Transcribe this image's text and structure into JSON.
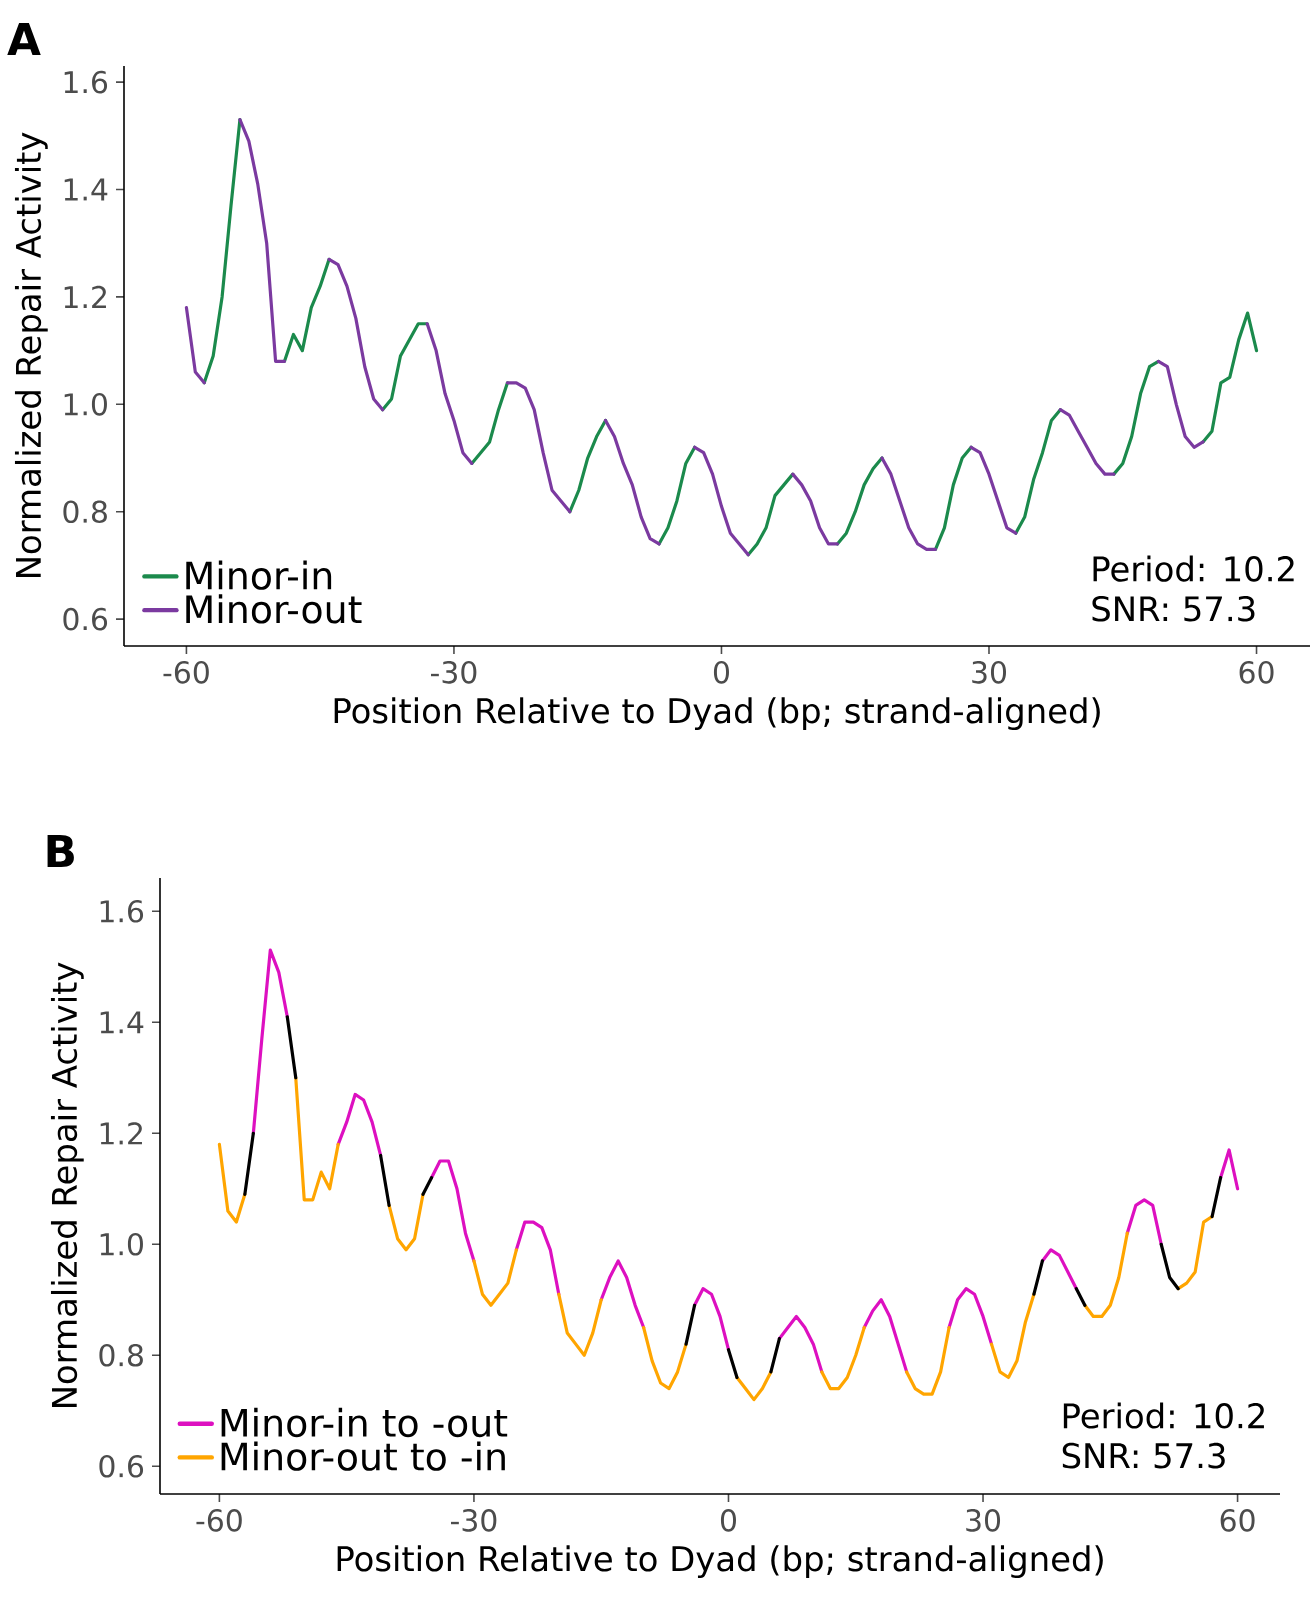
{
  "chart_data": [
    {
      "type": "line",
      "title": "A",
      "xlabel": "Position Relative to Dyad (bp; strand-aligned)",
      "ylabel": "Normalized Repair Activity",
      "annotations": [
        "Period: 10.2",
        "SNR: 57.3"
      ],
      "x": [
        -60,
        -59,
        -58,
        -57,
        -56,
        -55,
        -54,
        -53,
        -52,
        -51,
        -50,
        -49,
        -48,
        -47,
        -46,
        -45,
        -44,
        -43,
        -42,
        -41,
        -40,
        -39,
        -38,
        -37,
        -36,
        -35,
        -34,
        -33,
        -32,
        -31,
        -30,
        -29,
        -28,
        -27,
        -26,
        -25,
        -24,
        -23,
        -22,
        -21,
        -20,
        -19,
        -18,
        -17,
        -16,
        -15,
        -14,
        -13,
        -12,
        -11,
        -10,
        -9,
        -8,
        -7,
        -6,
        -5,
        -4,
        -3,
        -2,
        -1,
        0,
        1,
        2,
        3,
        4,
        5,
        6,
        7,
        8,
        9,
        10,
        11,
        12,
        13,
        14,
        15,
        16,
        17,
        18,
        19,
        20,
        21,
        22,
        23,
        24,
        25,
        26,
        27,
        28,
        29,
        30,
        31,
        32,
        33,
        34,
        35,
        36,
        37,
        38,
        39,
        40,
        41,
        42,
        43,
        44,
        45,
        46,
        47,
        48,
        49,
        50,
        51,
        52,
        53,
        54,
        55,
        56,
        57,
        58,
        59,
        60
      ],
      "xlim": [
        -67,
        66
      ],
      "ylim": [
        0.55,
        1.63
      ],
      "xticks": [
        -60,
        -30,
        0,
        30,
        60
      ],
      "yticks": [
        0.6,
        0.8,
        {
          "value": 1.0,
          "label": "1.0"
        },
        1.2,
        1.4,
        1.6
      ],
      "legend": "bottom left",
      "series": [
        {
          "name": "Minor-in",
          "color": "#1b8a4c",
          "values": [
            null,
            null,
            1.04,
            1.09,
            1.2,
            1.37,
            1.53,
            null,
            null,
            null,
            null,
            1.08,
            1.13,
            1.1,
            1.18,
            1.22,
            1.27,
            null,
            null,
            null,
            null,
            null,
            0.99,
            1.01,
            1.09,
            1.12,
            1.15,
            1.15,
            null,
            null,
            null,
            null,
            0.89,
            0.91,
            0.93,
            0.99,
            1.04,
            null,
            null,
            null,
            null,
            null,
            null,
            0.8,
            0.84,
            0.9,
            0.94,
            0.97,
            null,
            null,
            null,
            null,
            null,
            0.74,
            0.77,
            0.82,
            0.89,
            0.92,
            null,
            null,
            null,
            null,
            null,
            0.72,
            0.74,
            0.77,
            0.83,
            0.85,
            0.87,
            null,
            null,
            null,
            null,
            0.74,
            0.76,
            0.8,
            0.85,
            0.88,
            0.9,
            null,
            null,
            null,
            null,
            null,
            0.73,
            0.77,
            0.85,
            0.9,
            0.92,
            null,
            null,
            null,
            null,
            0.76,
            0.79,
            0.86,
            0.91,
            0.97,
            0.99,
            null,
            null,
            null,
            null,
            null,
            0.87,
            0.89,
            0.94,
            1.02,
            1.07,
            1.08,
            null,
            null,
            null,
            null,
            0.93,
            0.95,
            1.04,
            1.05,
            1.12,
            1.17,
            1.1
          ]
        },
        {
          "name": "Minor-out",
          "color": "#7b3aa0",
          "values": [
            1.18,
            1.06,
            1.04,
            null,
            null,
            null,
            1.53,
            1.49,
            1.41,
            1.3,
            1.08,
            1.08,
            null,
            null,
            null,
            null,
            1.27,
            1.26,
            1.22,
            1.16,
            1.07,
            1.01,
            0.99,
            null,
            null,
            null,
            null,
            1.15,
            1.1,
            1.02,
            0.97,
            0.91,
            0.89,
            null,
            null,
            null,
            1.04,
            1.04,
            1.03,
            0.99,
            0.91,
            0.84,
            0.82,
            0.8,
            null,
            null,
            null,
            0.97,
            0.94,
            0.89,
            0.85,
            0.79,
            0.75,
            0.74,
            null,
            null,
            null,
            0.92,
            0.91,
            0.87,
            0.81,
            0.76,
            0.74,
            0.72,
            null,
            null,
            null,
            null,
            0.87,
            0.85,
            0.82,
            0.77,
            0.74,
            0.74,
            null,
            null,
            null,
            null,
            0.9,
            0.87,
            0.82,
            0.77,
            0.74,
            0.73,
            0.73,
            null,
            null,
            null,
            0.92,
            0.91,
            0.87,
            0.82,
            0.77,
            0.76,
            null,
            null,
            null,
            null,
            0.99,
            0.98,
            0.95,
            0.92,
            0.89,
            0.87,
            0.87,
            null,
            null,
            null,
            null,
            1.08,
            1.07,
            1.0,
            0.94,
            0.92,
            0.93,
            null,
            null,
            null,
            null,
            null,
            null
          ]
        }
      ]
    },
    {
      "type": "line",
      "title": "B",
      "xlabel": "Position Relative to Dyad (bp; strand-aligned)",
      "ylabel": "Normalized Repair Activity",
      "annotations": [
        "Period: 10.2",
        "SNR: 57.3"
      ],
      "x": [
        -60,
        -59,
        -58,
        -57,
        -56,
        -55,
        -54,
        -53,
        -52,
        -51,
        -50,
        -49,
        -48,
        -47,
        -46,
        -45,
        -44,
        -43,
        -42,
        -41,
        -40,
        -39,
        -38,
        -37,
        -36,
        -35,
        -34,
        -33,
        -32,
        -31,
        -30,
        -29,
        -28,
        -27,
        -26,
        -25,
        -24,
        -23,
        -22,
        -21,
        -20,
        -19,
        -18,
        -17,
        -16,
        -15,
        -14,
        -13,
        -12,
        -11,
        -10,
        -9,
        -8,
        -7,
        -6,
        -5,
        -4,
        -3,
        -2,
        -1,
        0,
        1,
        2,
        3,
        4,
        5,
        6,
        7,
        8,
        9,
        10,
        11,
        12,
        13,
        14,
        15,
        16,
        17,
        18,
        19,
        20,
        21,
        22,
        23,
        24,
        25,
        26,
        27,
        28,
        29,
        30,
        31,
        32,
        33,
        34,
        35,
        36,
        37,
        38,
        39,
        40,
        41,
        42,
        43,
        44,
        45,
        46,
        47,
        48,
        49,
        50,
        51,
        52,
        53,
        54,
        55,
        56,
        57,
        58,
        59,
        60
      ],
      "xlim": [
        -67,
        65
      ],
      "ylim": [
        0.55,
        1.66
      ],
      "xticks": [
        -60,
        -30,
        0,
        30,
        60
      ],
      "yticks": [
        0.6,
        0.8,
        {
          "value": 1.0,
          "label": "1.0"
        },
        1.2,
        1.4,
        1.6
      ],
      "legend": "bottom left",
      "series": [
        {
          "name": "Minor-in to -out",
          "color": "#dd10c0",
          "values": [
            null,
            null,
            null,
            null,
            1.2,
            1.37,
            1.53,
            1.49,
            1.41,
            null,
            null,
            null,
            null,
            null,
            1.18,
            1.22,
            1.27,
            1.26,
            1.22,
            1.16,
            null,
            null,
            null,
            null,
            null,
            1.12,
            1.15,
            1.15,
            1.1,
            1.02,
            0.97,
            null,
            null,
            null,
            null,
            0.99,
            1.04,
            1.04,
            1.03,
            0.99,
            0.91,
            null,
            null,
            null,
            null,
            0.9,
            0.94,
            0.97,
            0.94,
            0.89,
            0.85,
            null,
            null,
            null,
            null,
            null,
            0.89,
            0.92,
            0.91,
            0.87,
            0.81,
            null,
            null,
            null,
            null,
            null,
            0.83,
            0.85,
            0.87,
            0.85,
            0.82,
            0.77,
            null,
            null,
            null,
            null,
            0.85,
            0.88,
            0.9,
            0.87,
            0.82,
            0.77,
            null,
            null,
            null,
            null,
            0.85,
            0.9,
            0.92,
            0.91,
            0.87,
            0.82,
            null,
            null,
            null,
            null,
            null,
            0.97,
            0.99,
            0.98,
            0.95,
            0.92,
            null,
            null,
            null,
            null,
            null,
            1.02,
            1.07,
            1.08,
            1.07,
            1.0,
            null,
            null,
            null,
            null,
            null,
            null,
            1.12,
            1.17,
            1.1
          ]
        },
        {
          "name": "Minor-out to -in",
          "color": "#ffa500",
          "values": [
            1.18,
            1.06,
            1.04,
            1.09,
            null,
            null,
            null,
            null,
            null,
            1.3,
            1.08,
            1.08,
            1.13,
            1.1,
            1.18,
            null,
            null,
            null,
            null,
            null,
            1.07,
            1.01,
            0.99,
            1.01,
            1.09,
            null,
            null,
            null,
            null,
            null,
            0.97,
            0.91,
            0.89,
            0.91,
            0.93,
            0.99,
            null,
            null,
            null,
            null,
            0.91,
            0.84,
            0.82,
            0.8,
            0.84,
            0.9,
            null,
            null,
            null,
            null,
            0.85,
            0.79,
            0.75,
            0.74,
            0.77,
            0.82,
            null,
            null,
            null,
            null,
            null,
            0.76,
            0.74,
            0.72,
            0.74,
            0.77,
            null,
            null,
            null,
            null,
            null,
            0.77,
            0.74,
            0.74,
            0.76,
            0.8,
            0.85,
            null,
            null,
            null,
            null,
            0.77,
            0.74,
            0.73,
            0.73,
            0.77,
            0.85,
            null,
            null,
            null,
            null,
            0.82,
            0.77,
            0.76,
            0.79,
            0.86,
            0.91,
            null,
            null,
            null,
            null,
            null,
            0.89,
            0.87,
            0.87,
            0.89,
            0.94,
            1.02,
            null,
            null,
            null,
            null,
            null,
            0.92,
            0.93,
            0.95,
            1.04,
            1.05,
            null,
            null,
            null
          ]
        },
        {
          "color": "#000000",
          "values": [
            null,
            null,
            null,
            1.09,
            1.2,
            null,
            null,
            null,
            1.41,
            1.3,
            null,
            null,
            null,
            null,
            null,
            null,
            null,
            null,
            null,
            1.16,
            1.07,
            null,
            null,
            null,
            1.09,
            1.12,
            null,
            null,
            null,
            null,
            null,
            null,
            null,
            null,
            null,
            null,
            null,
            null,
            null,
            null,
            null,
            null,
            null,
            null,
            null,
            null,
            null,
            null,
            null,
            null,
            null,
            null,
            null,
            null,
            null,
            0.82,
            0.89,
            null,
            null,
            null,
            0.81,
            0.76,
            null,
            null,
            null,
            0.77,
            0.83,
            null,
            null,
            null,
            null,
            null,
            null,
            null,
            null,
            null,
            null,
            null,
            null,
            null,
            null,
            null,
            null,
            null,
            null,
            null,
            null,
            null,
            null,
            null,
            null,
            null,
            null,
            null,
            null,
            null,
            0.91,
            0.97,
            null,
            null,
            null,
            0.92,
            0.89,
            null,
            null,
            null,
            null,
            null,
            null,
            null,
            null,
            1.0,
            0.94,
            0.92,
            null,
            null,
            null,
            1.05,
            1.12,
            null,
            null
          ]
        }
      ]
    }
  ]
}
